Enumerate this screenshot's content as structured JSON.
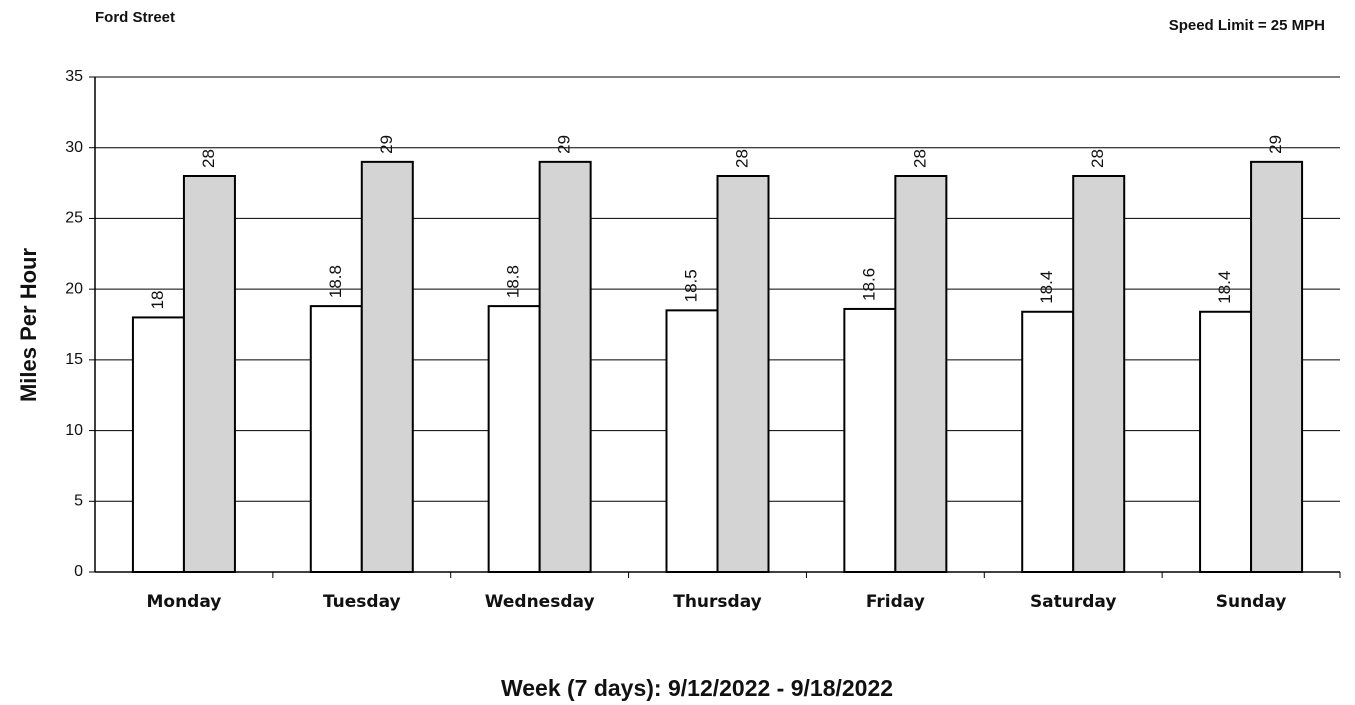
{
  "chart_data": {
    "type": "bar",
    "title": "Ford Street",
    "subtitle": "Speed Limit = 25 MPH",
    "y_label": "Miles Per Hour",
    "x_label": "Week (7 days): 9/12/2022 - 9/18/2022",
    "categories": [
      "Monday",
      "Tuesday",
      "Wednesday",
      "Thursday",
      "Friday",
      "Saturday",
      "Sunday"
    ],
    "series": [
      {
        "color": "#ffffff",
        "values": [
          18,
          18.8,
          18.8,
          18.5,
          18.6,
          18.4,
          18.4
        ]
      },
      {
        "color": "#d4d4d4",
        "values": [
          28,
          29,
          29,
          28,
          28,
          28,
          29
        ]
      }
    ],
    "ylim": [
      0,
      35
    ],
    "yticks": [
      0,
      5,
      10,
      15,
      20,
      25,
      30,
      35
    ],
    "grid": true
  }
}
